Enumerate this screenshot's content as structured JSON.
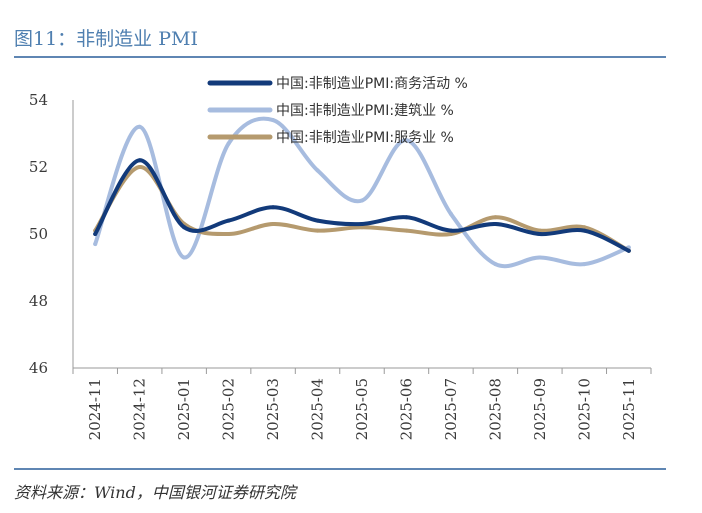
{
  "header": {
    "title": "图11：非制造业 PMI"
  },
  "footer": {
    "source": "资料来源：Wind，中国银河证券研究院"
  },
  "colors": {
    "title": "#4f7fb0",
    "rule": "#5f86b3"
  },
  "chart_data": {
    "type": "line",
    "title": "",
    "xlabel": "",
    "ylabel": "",
    "categories": [
      "2024-11",
      "2024-12",
      "2025-01",
      "2025-02",
      "2025-03",
      "2025-04",
      "2025-05",
      "2025-06",
      "2025-07",
      "2025-08",
      "2025-09",
      "2025-10",
      "2025-11"
    ],
    "ylim": [
      46,
      54
    ],
    "yticks": [
      46,
      48,
      50,
      52,
      54
    ],
    "grid": false,
    "legend_position": "top",
    "series": [
      {
        "name": "中国:非制造业PMI:商务活动 %",
        "color": "#123a7a",
        "values": [
          50.0,
          52.2,
          50.2,
          50.4,
          50.8,
          50.4,
          50.3,
          50.5,
          50.1,
          50.3,
          50.0,
          50.1,
          49.5
        ]
      },
      {
        "name": "中国:非制造业PMI:建筑业 %",
        "color": "#a7bcdf",
        "values": [
          49.7,
          53.2,
          49.3,
          52.7,
          53.4,
          51.9,
          51.0,
          52.8,
          50.6,
          49.1,
          49.3,
          49.1,
          49.6
        ]
      },
      {
        "name": "中国:非制造业PMI:服务业 %",
        "color": "#b59a6e",
        "values": [
          50.1,
          52.0,
          50.3,
          50.0,
          50.3,
          50.1,
          50.2,
          50.1,
          50.0,
          50.5,
          50.1,
          50.2,
          49.5
        ]
      }
    ]
  }
}
